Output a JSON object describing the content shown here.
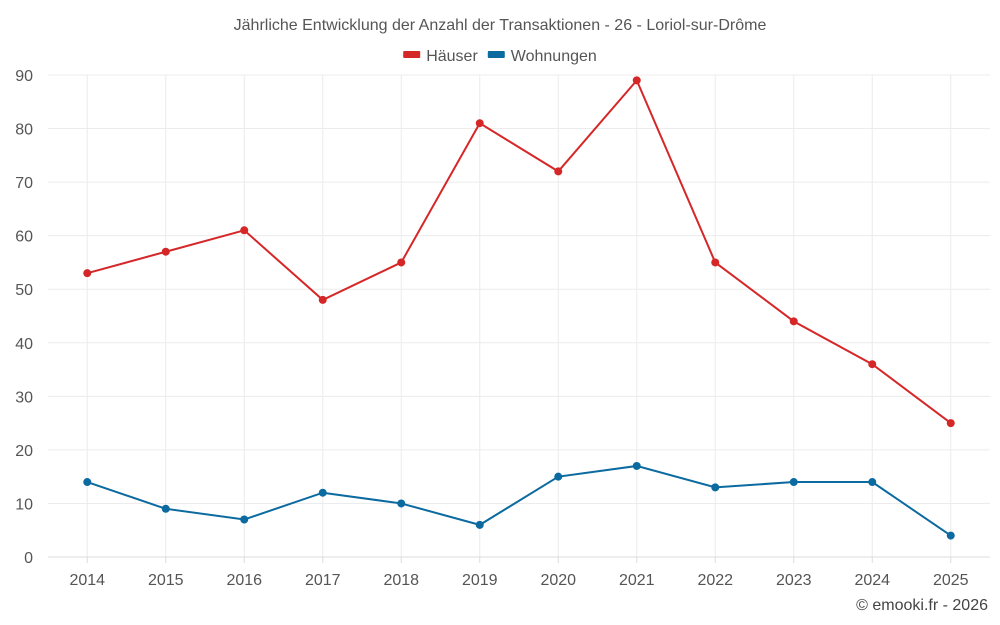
{
  "chart_data": {
    "type": "line",
    "title": "Jährliche Entwicklung der Anzahl der Transaktionen - 26 - Loriol-sur-Drôme",
    "xlabel": "",
    "ylabel": "",
    "categories": [
      "2014",
      "2015",
      "2016",
      "2017",
      "2018",
      "2019",
      "2020",
      "2021",
      "2022",
      "2023",
      "2024",
      "2025"
    ],
    "ylim": [
      0,
      90
    ],
    "yticks": [
      0,
      10,
      20,
      30,
      40,
      50,
      60,
      70,
      80,
      90
    ],
    "grid": true,
    "legend": "top-center",
    "series": [
      {
        "name": "Häuser",
        "color": "#d62728",
        "values": [
          53,
          57,
          61,
          48,
          55,
          81,
          72,
          89,
          55,
          44,
          36,
          25
        ]
      },
      {
        "name": "Wohnungen",
        "color": "#0b6aa0",
        "values": [
          14,
          9,
          7,
          12,
          10,
          6,
          15,
          17,
          13,
          14,
          14,
          4
        ]
      }
    ]
  },
  "credit": "© emooki.fr - 2026"
}
